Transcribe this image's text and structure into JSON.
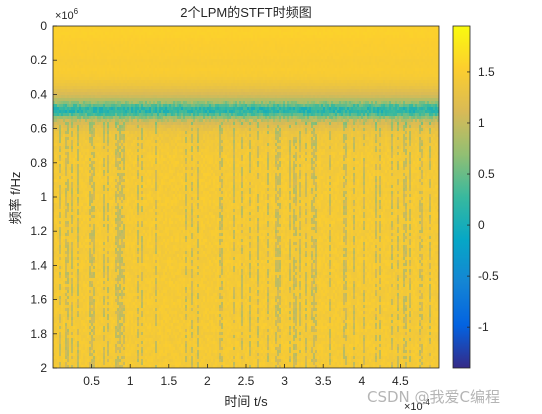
{
  "chart_data": {
    "type": "heatmap",
    "title": "2个LPM的STFT时频图",
    "xlabel": "时间 t/s",
    "ylabel": "频率 f/Hz",
    "x_exponent_base": "×10",
    "x_exponent_power": "-4",
    "y_exponent_base": "×10",
    "y_exponent_power": "6",
    "xlim": [
      0.0,
      0.0005
    ],
    "ylim": [
      0,
      2000000
    ],
    "y_reversed": true,
    "x_ticks": [
      0.5,
      1,
      1.5,
      2,
      2.5,
      3,
      3.5,
      4,
      4.5
    ],
    "x_tick_labels": [
      "0.5",
      "1",
      "1.5",
      "2",
      "2.5",
      "3",
      "3.5",
      "4",
      "4.5"
    ],
    "y_ticks": [
      0,
      0.2,
      0.4,
      0.6,
      0.8,
      1,
      1.2,
      1.4,
      1.6,
      1.8,
      2
    ],
    "y_tick_labels": [
      "0",
      "0.2",
      "0.4",
      "0.6",
      "0.8",
      "1",
      "1.2",
      "1.4",
      "1.6",
      "1.8",
      "2"
    ],
    "colorbar": {
      "clim": [
        -1.4,
        1.95
      ],
      "ticks": [
        1.5,
        1,
        0.5,
        0,
        -0.5,
        -1
      ],
      "tick_labels": [
        "1.5",
        "1",
        "0.5",
        "0",
        "-0.5",
        "-1"
      ],
      "colormap": "parula"
    },
    "profile_mhz": [
      0,
      0.05,
      0.1,
      0.15,
      0.2,
      0.25,
      0.3,
      0.35,
      0.38,
      0.42,
      0.45,
      0.47,
      0.49,
      0.51,
      0.53,
      0.55,
      0.58,
      0.62,
      0.7,
      0.8,
      1.0,
      1.2,
      1.4,
      1.6,
      1.8,
      2.0
    ],
    "profile_values": [
      1.55,
      1.55,
      1.53,
      1.5,
      1.48,
      1.5,
      1.45,
      1.35,
      1.2,
      1.0,
      0.7,
      0.35,
      0.1,
      0.25,
      0.6,
      0.95,
      1.2,
      1.35,
      1.42,
      1.45,
      1.45,
      1.45,
      1.45,
      1.45,
      1.45,
      1.45
    ],
    "grid": false
  },
  "watermark": {
    "text": "CSDN @我爱C编程"
  }
}
